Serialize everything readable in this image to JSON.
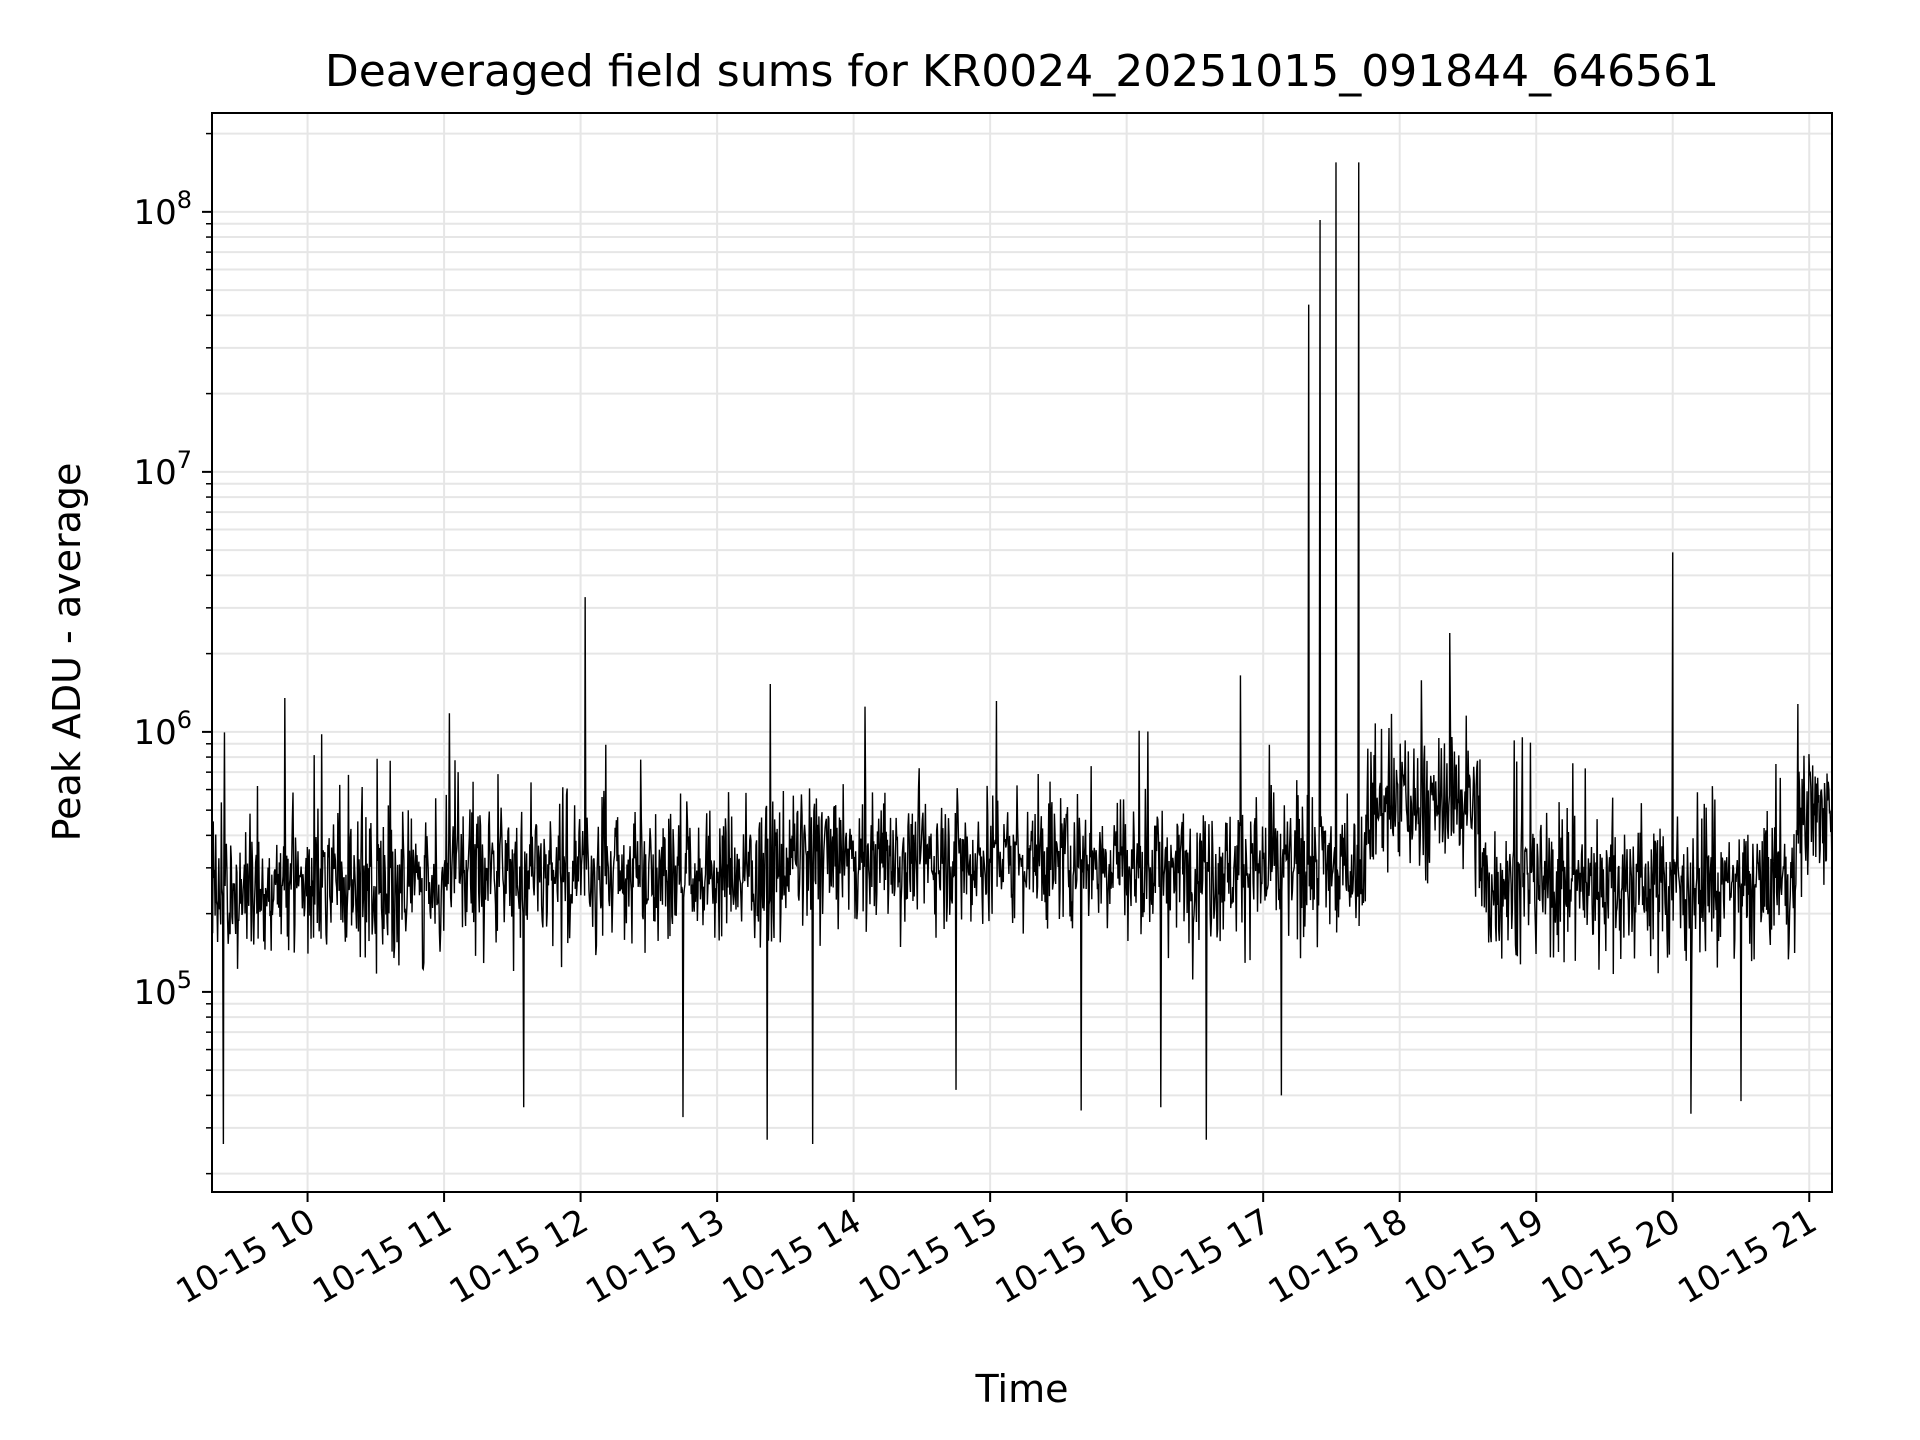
{
  "chart_data": {
    "type": "line",
    "title": "Deaveraged field sums for KR0024_20251015_091844_646561",
    "xlabel": "Time",
    "ylabel": "Peak ADU - average",
    "x_range": [
      "2025-10-15 09:18",
      "2025-10-15 21:10"
    ],
    "y_scale": "log",
    "ylim": [
      17000,
      240000000
    ],
    "grid": true,
    "line_color": "#000000",
    "grid_color": "#e6e6e6",
    "x_ticks": [
      {
        "label": "10-15 10",
        "hour": 10
      },
      {
        "label": "10-15 11",
        "hour": 11
      },
      {
        "label": "10-15 12",
        "hour": 12
      },
      {
        "label": "10-15 13",
        "hour": 13
      },
      {
        "label": "10-15 14",
        "hour": 14
      },
      {
        "label": "10-15 15",
        "hour": 15
      },
      {
        "label": "10-15 16",
        "hour": 16
      },
      {
        "label": "10-15 17",
        "hour": 17
      },
      {
        "label": "10-15 18",
        "hour": 18
      },
      {
        "label": "10-15 19",
        "hour": 19
      },
      {
        "label": "10-15 20",
        "hour": 20
      },
      {
        "label": "10-15 21",
        "hour": 21
      }
    ],
    "y_ticks": [
      {
        "base": "10",
        "exp": "5",
        "value": 100000
      },
      {
        "base": "10",
        "exp": "6",
        "value": 1000000
      },
      {
        "base": "10",
        "exp": "7",
        "value": 10000000
      },
      {
        "base": "10",
        "exp": "8",
        "value": 100000000
      }
    ],
    "baseline_segments": [
      {
        "start": "2025-10-15 09:18",
        "end": "2025-10-15 11:00",
        "level": 250000
      },
      {
        "start": "2025-10-15 11:00",
        "end": "2025-10-15 13:30",
        "level": 290000
      },
      {
        "start": "2025-10-15 13:30",
        "end": "2025-10-15 16:00",
        "level": 330000
      },
      {
        "start": "2025-10-15 16:00",
        "end": "2025-10-15 17:45",
        "level": 300000
      },
      {
        "start": "2025-10-15 17:45",
        "end": "2025-10-15 18:35",
        "level": 520000
      },
      {
        "start": "2025-10-15 18:35",
        "end": "2025-10-15 20:55",
        "level": 260000
      },
      {
        "start": "2025-10-15 20:55",
        "end": "2025-10-15 21:10",
        "level": 480000
      }
    ],
    "spikes": [
      {
        "time": "2025-10-15 09:50",
        "value": 1350000
      },
      {
        "time": "2025-10-15 12:02",
        "value": 3300000
      },
      {
        "time": "2025-10-15 14:05",
        "value": 1250000
      },
      {
        "time": "2025-10-15 16:50",
        "value": 1650000
      },
      {
        "time": "2025-10-15 17:20",
        "value": 44000000
      },
      {
        "time": "2025-10-15 17:25",
        "value": 93000000
      },
      {
        "time": "2025-10-15 17:32",
        "value": 155000000
      },
      {
        "time": "2025-10-15 17:42",
        "value": 155000000
      },
      {
        "time": "2025-10-15 18:22",
        "value": 2400000
      },
      {
        "time": "2025-10-15 20:00",
        "value": 4900000
      },
      {
        "time": "2025-10-15 20:55",
        "value": 1280000
      }
    ],
    "dips": [
      {
        "time": "2025-10-15 09:23",
        "value": 26000
      },
      {
        "time": "2025-10-15 11:35",
        "value": 36000
      },
      {
        "time": "2025-10-15 12:45",
        "value": 33000
      },
      {
        "time": "2025-10-15 13:22",
        "value": 27000
      },
      {
        "time": "2025-10-15 13:42",
        "value": 26000
      },
      {
        "time": "2025-10-15 14:45",
        "value": 42000
      },
      {
        "time": "2025-10-15 15:40",
        "value": 35000
      },
      {
        "time": "2025-10-15 16:15",
        "value": 36000
      },
      {
        "time": "2025-10-15 16:35",
        "value": 27000
      },
      {
        "time": "2025-10-15 17:08",
        "value": 40000
      },
      {
        "time": "2025-10-15 20:08",
        "value": 34000
      },
      {
        "time": "2025-10-15 20:30",
        "value": 38000
      }
    ]
  }
}
